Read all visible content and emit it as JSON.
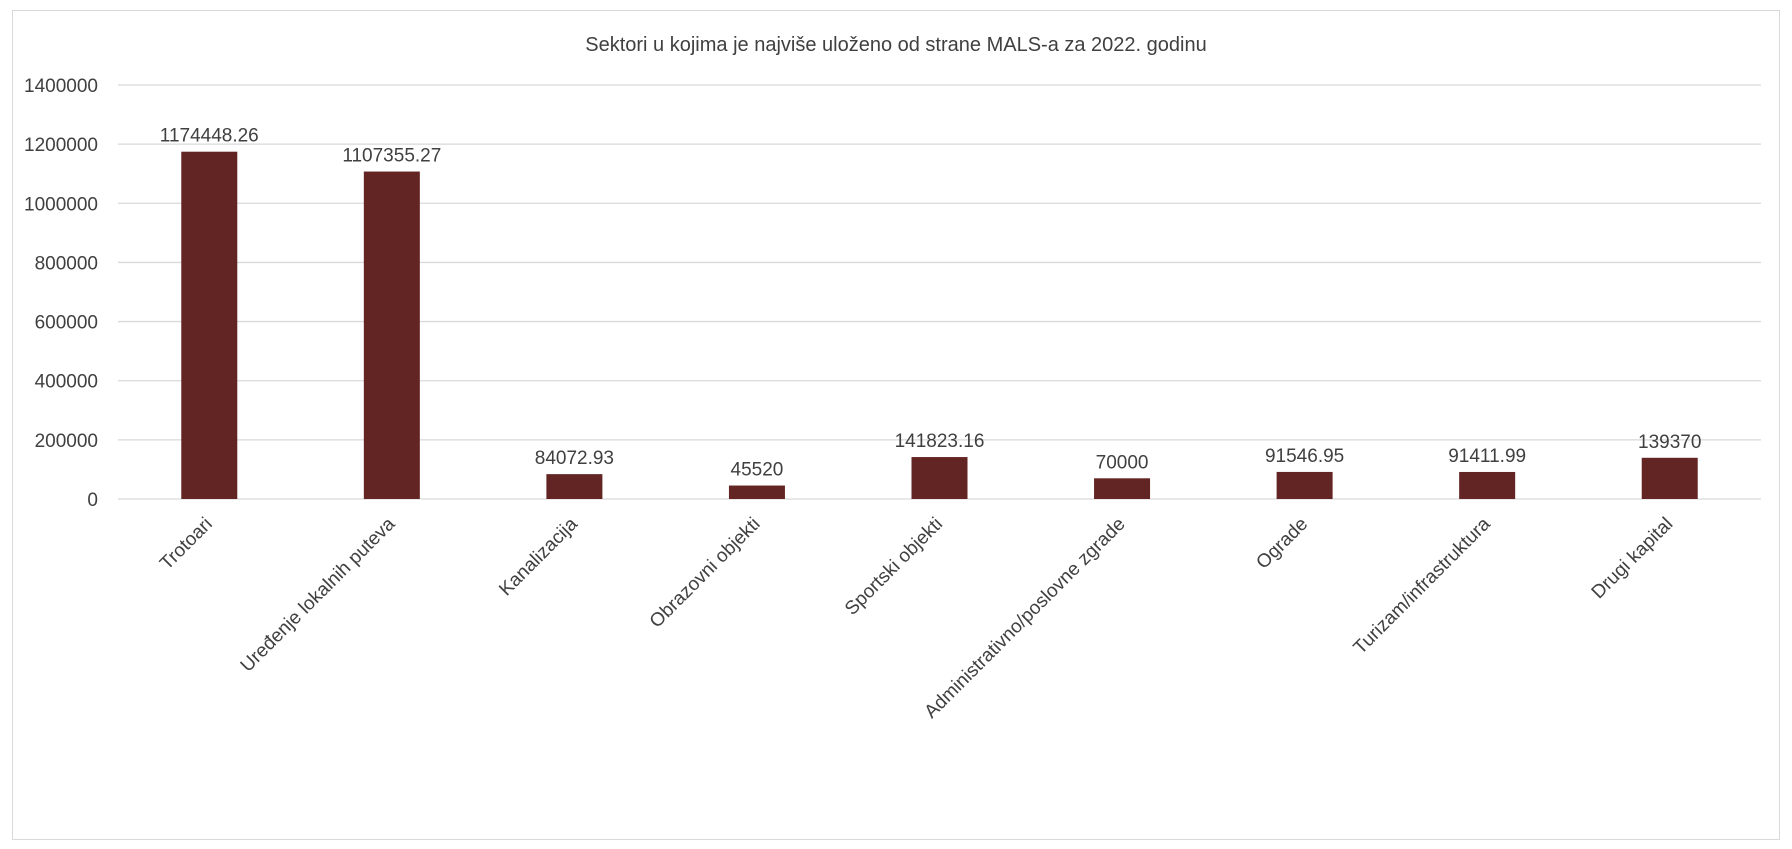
{
  "chart_data": {
    "type": "bar",
    "title": "Sektori u kojima je najviše uloženo od strane MALS-a za 2022. godinu",
    "xlabel": "",
    "ylabel": "",
    "ylim": [
      0,
      1400000
    ],
    "yticks": [
      0,
      200000,
      400000,
      600000,
      800000,
      1000000,
      1200000,
      1400000
    ],
    "ytick_labels": [
      "0",
      "200000",
      "400000",
      "600000",
      "800000",
      "1000000",
      "1200000",
      "1400000"
    ],
    "grid": true,
    "legend": "none",
    "bar_color": "#632523",
    "categories": [
      "Trotoari",
      "Uređenje lokalnih puteva",
      "Kanalizacija",
      "Obrazovni objekti",
      "Sportski objekti",
      "Administrativno/poslovne zgrade",
      "Ograde",
      "Turizam/infrastruktura",
      "Drugi kapital"
    ],
    "values": [
      1174448.26,
      1107355.27,
      84072.93,
      45520,
      141823.16,
      70000,
      91546.95,
      91411.99,
      139370
    ],
    "value_labels": [
      "1174448.26",
      "1107355.27",
      "84072.93",
      "45520",
      "141823.16",
      "70000",
      "91546.95",
      "91411.99",
      "139370"
    ]
  }
}
